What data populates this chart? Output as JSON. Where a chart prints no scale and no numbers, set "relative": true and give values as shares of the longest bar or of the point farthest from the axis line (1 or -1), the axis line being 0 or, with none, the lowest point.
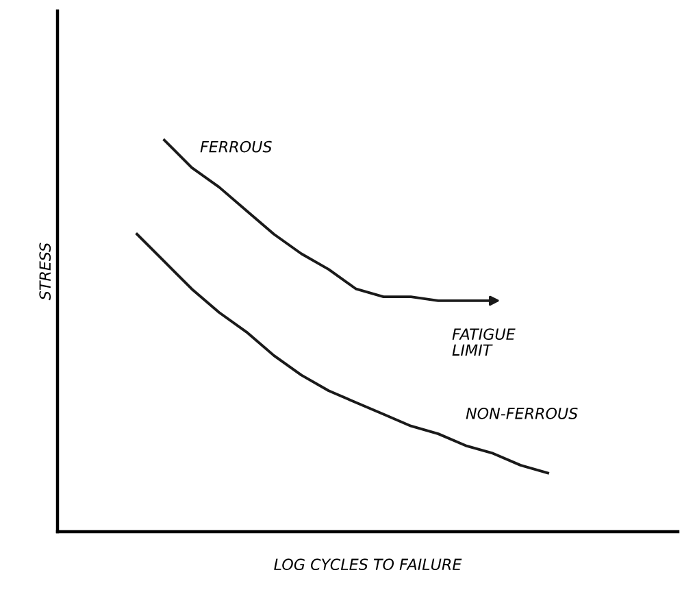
{
  "chart_data": {
    "type": "line",
    "relative": true,
    "xlabel": "LOG CYCLES TO FAILURE",
    "ylabel": "STRESS",
    "categories": [
      null,
      null,
      null,
      null,
      null,
      null,
      null,
      null,
      null,
      null,
      null,
      null,
      null,
      null,
      null,
      null
    ],
    "series": [
      {
        "name": "FERROUS",
        "color": "#1a1a1a",
        "values": [
          null,
          1.0,
          0.93,
          0.88,
          0.82,
          0.76,
          0.71,
          0.67,
          0.62,
          0.6,
          0.6,
          0.59,
          0.59,
          0.59,
          null,
          null
        ]
      },
      {
        "name": "NON-FERROUS",
        "color": "#1a1a1a",
        "values": [
          0.76,
          0.69,
          0.62,
          0.56,
          0.51,
          0.45,
          0.4,
          0.36,
          0.33,
          0.3,
          0.27,
          0.25,
          0.22,
          0.2,
          0.17,
          0.15
        ]
      }
    ],
    "annotations": [
      "FATIGUE\nLIMIT"
    ],
    "legend": false,
    "marker": "none",
    "line_style": "solid"
  }
}
